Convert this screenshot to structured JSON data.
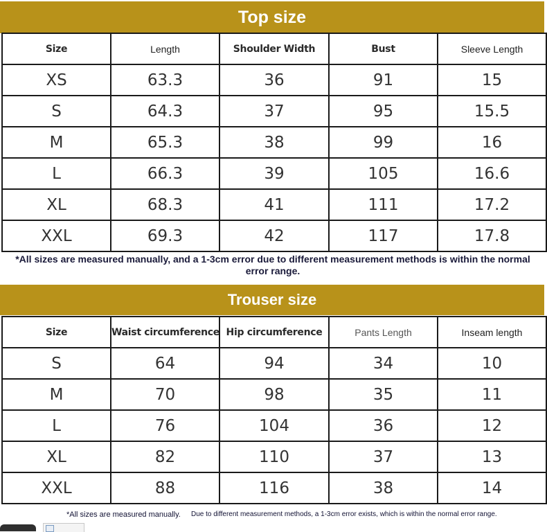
{
  "top": {
    "title": "Top size",
    "headers": [
      "Size",
      "Length",
      "Shoulder Width",
      "Bust",
      "Sleeve Length"
    ],
    "rows": [
      [
        "XS",
        "63.3",
        "36",
        "91",
        "15"
      ],
      [
        "S",
        "64.3",
        "37",
        "95",
        "15.5"
      ],
      [
        "M",
        "65.3",
        "38",
        "99",
        "16"
      ],
      [
        "L",
        "66.3",
        "39",
        "105",
        "16.6"
      ],
      [
        "XL",
        "68.3",
        "41",
        "111",
        "17.2"
      ],
      [
        "XXL",
        "69.3",
        "42",
        "117",
        "17.8"
      ]
    ],
    "note": "*All sizes are measured manually, and a 1-3cm error due to different measurement methods is within the normal error range."
  },
  "trouser": {
    "title": "Trouser size",
    "headers": [
      "Size",
      "Waist circumference",
      "Hip circumference",
      "Pants Length",
      "Inseam length"
    ],
    "rows": [
      [
        "S",
        "64",
        "94",
        "34",
        "10"
      ],
      [
        "M",
        "70",
        "98",
        "35",
        "11"
      ],
      [
        "L",
        "76",
        "104",
        "36",
        "12"
      ],
      [
        "XL",
        "82",
        "110",
        "37",
        "13"
      ],
      [
        "XXL",
        "88",
        "116",
        "38",
        "14"
      ]
    ],
    "note_part1": "*All sizes are measured manually.",
    "note_part2": "Due to different measurement methods, a 1-3cm error exists, which is within the normal error range."
  },
  "colors": {
    "banner": "#b8921a",
    "banner_text": "#ffffff",
    "grid_line": "#1a1a1a"
  }
}
